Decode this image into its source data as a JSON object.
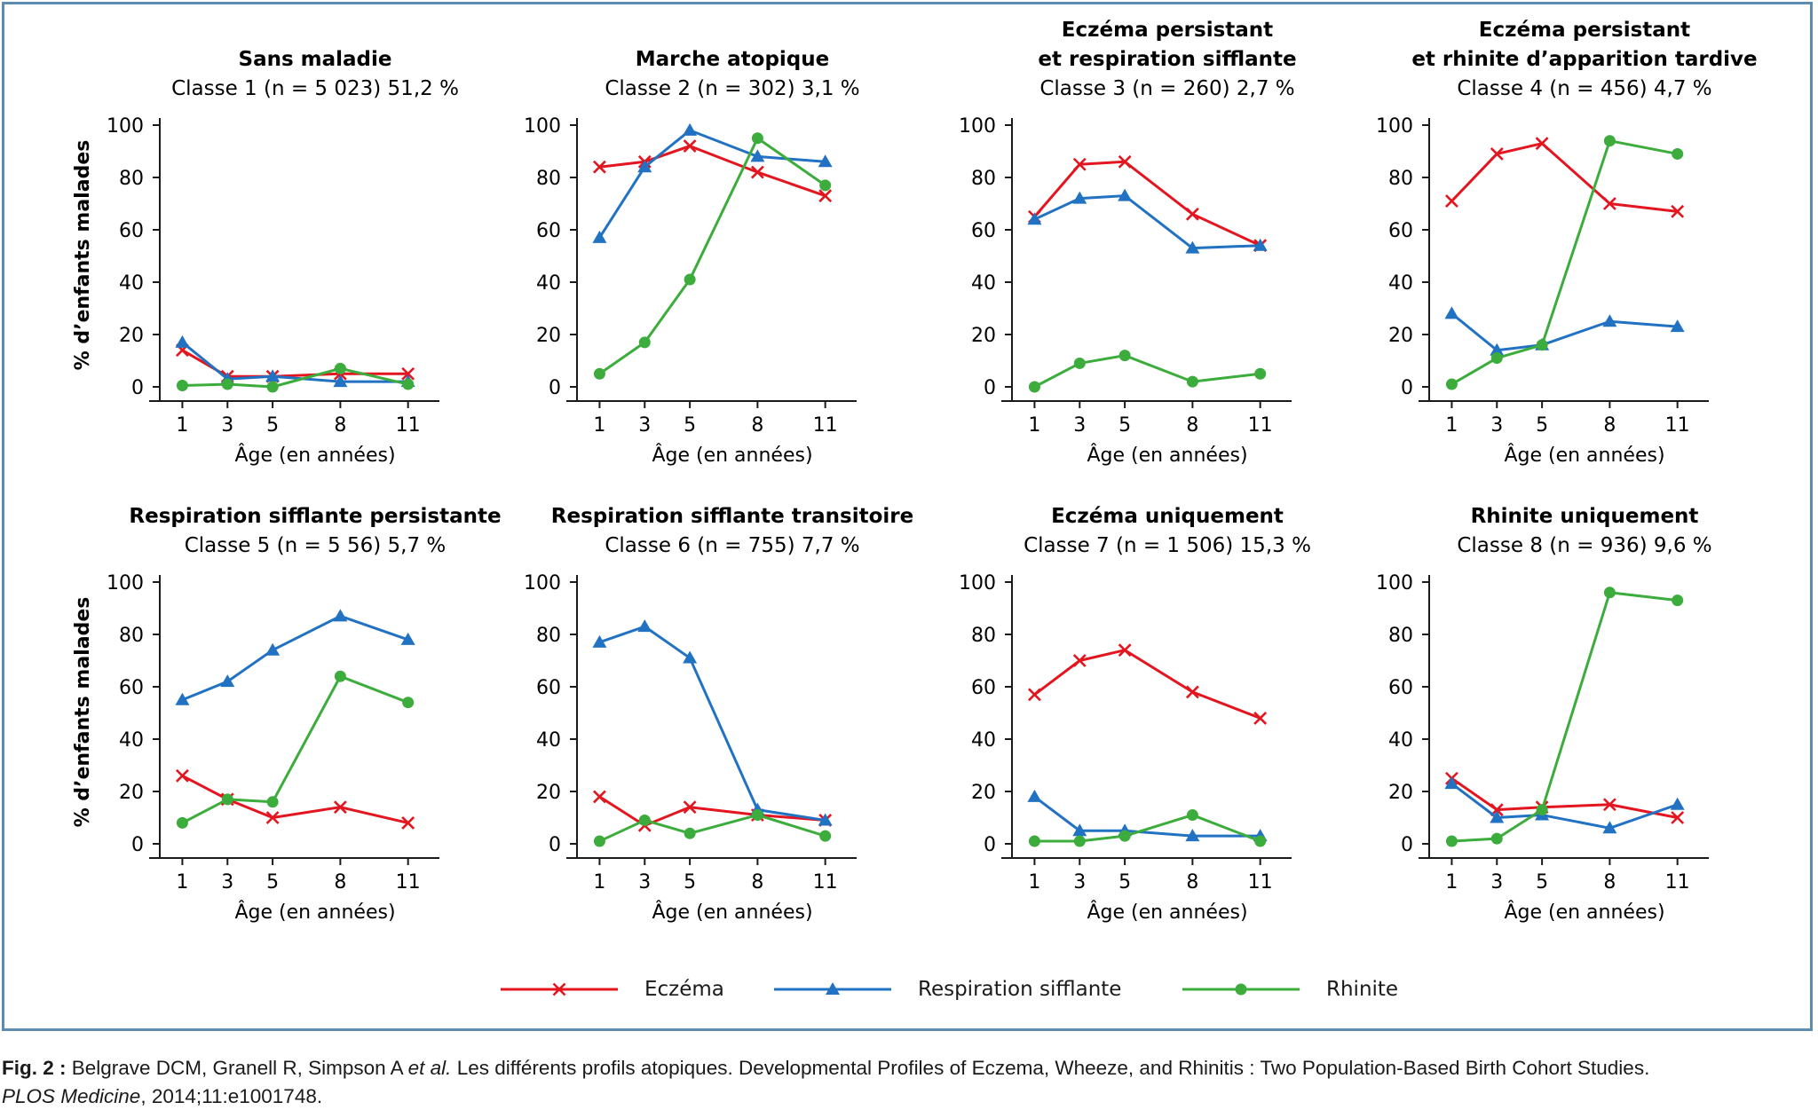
{
  "legend": [
    {
      "label": "Eczéma",
      "color": "#e3151f",
      "marker": "x"
    },
    {
      "label": "Respiration sifflante",
      "color": "#2272c3",
      "marker": "triangle"
    },
    {
      "label": "Rhinite",
      "color": "#3cac3c",
      "marker": "circle"
    }
  ],
  "caption": {
    "fig_label": "Fig. 2 :",
    "authors": " Belgrave DCM, Granell R, Simpson A ",
    "etal": "et al.",
    "text": " Les différents profils atopiques. Developmental Profiles of Eczema, Wheeze, and Rhinitis : Two Population-Based Birth Cohort Studies.",
    "journal": "PLOS Medicine",
    "ref": ", 2014;11:e1001748."
  },
  "chart_data": [
    {
      "type": "line",
      "title": [
        "Sans maladie"
      ],
      "subtitle": "Classe 1 (n = 5 023) 51,2 %",
      "x": [
        1,
        3,
        5,
        8,
        11
      ],
      "xlabel": "Âge (en années)",
      "ylabel": "% d’enfants malades",
      "ylim": [
        0,
        100
      ],
      "xticks": [
        "1",
        "3",
        "5",
        "8",
        "11"
      ],
      "yticks": [
        "0",
        "20",
        "40",
        "60",
        "80",
        "100"
      ],
      "series": [
        {
          "name": "Eczéma",
          "values": [
            14,
            4,
            4,
            5,
            5
          ]
        },
        {
          "name": "Respiration sifflante",
          "values": [
            17,
            3,
            4,
            2,
            2
          ]
        },
        {
          "name": "Rhinite",
          "values": [
            0.5,
            1,
            0,
            7,
            1
          ]
        }
      ]
    },
    {
      "type": "line",
      "title": [
        "Marche atopique"
      ],
      "subtitle": "Classe 2 (n = 302) 3,1 %",
      "x": [
        1,
        3,
        5,
        8,
        11
      ],
      "xlabel": "Âge (en années)",
      "ylabel": "",
      "ylim": [
        0,
        100
      ],
      "xticks": [
        "1",
        "3",
        "5",
        "8",
        "11"
      ],
      "yticks": [
        "0",
        "20",
        "40",
        "60",
        "80",
        "100"
      ],
      "series": [
        {
          "name": "Eczéma",
          "values": [
            84,
            86,
            92,
            82,
            73
          ]
        },
        {
          "name": "Respiration sifflante",
          "values": [
            57,
            84,
            98,
            88,
            86
          ]
        },
        {
          "name": "Rhinite",
          "values": [
            5,
            17,
            41,
            95,
            77
          ]
        }
      ]
    },
    {
      "type": "line",
      "title": [
        "Eczéma persistant",
        "et respiration sifflante"
      ],
      "subtitle": "Classe 3 (n = 260) 2,7 %",
      "x": [
        1,
        3,
        5,
        8,
        11
      ],
      "xlabel": "Âge (en années)",
      "ylabel": "",
      "ylim": [
        0,
        100
      ],
      "xticks": [
        "1",
        "3",
        "5",
        "8",
        "11"
      ],
      "yticks": [
        "0",
        "20",
        "40",
        "60",
        "80",
        "100"
      ],
      "series": [
        {
          "name": "Eczéma",
          "values": [
            65,
            85,
            86,
            66,
            54
          ]
        },
        {
          "name": "Respiration sifflante",
          "values": [
            64,
            72,
            73,
            53,
            54
          ]
        },
        {
          "name": "Rhinite",
          "values": [
            0,
            9,
            12,
            2,
            5
          ]
        }
      ]
    },
    {
      "type": "line",
      "title": [
        "Eczéma persistant",
        "et rhinite d’apparition tardive"
      ],
      "subtitle": "Classe 4 (n = 456) 4,7 %",
      "x": [
        1,
        3,
        5,
        8,
        11
      ],
      "xlabel": "Âge (en années)",
      "ylabel": "",
      "ylim": [
        0,
        100
      ],
      "xticks": [
        "1",
        "3",
        "5",
        "8",
        "11"
      ],
      "yticks": [
        "0",
        "20",
        "40",
        "60",
        "80",
        "100"
      ],
      "series": [
        {
          "name": "Eczéma",
          "values": [
            71,
            89,
            93,
            70,
            67
          ]
        },
        {
          "name": "Respiration sifflante",
          "values": [
            28,
            14,
            16,
            25,
            23
          ]
        },
        {
          "name": "Rhinite",
          "values": [
            1,
            11,
            16,
            94,
            89
          ]
        }
      ]
    },
    {
      "type": "line",
      "title": [
        "Respiration sifflante persistante"
      ],
      "subtitle": "Classe 5 (n = 5 56) 5,7 %",
      "x": [
        1,
        3,
        5,
        8,
        11
      ],
      "xlabel": "Âge (en années)",
      "ylabel": "% d’enfants malades",
      "ylim": [
        0,
        100
      ],
      "xticks": [
        "1",
        "3",
        "5",
        "8",
        "11"
      ],
      "yticks": [
        "0",
        "20",
        "40",
        "60",
        "80",
        "100"
      ],
      "series": [
        {
          "name": "Eczéma",
          "values": [
            26,
            17,
            10,
            14,
            8
          ]
        },
        {
          "name": "Respiration sifflante",
          "values": [
            55,
            62,
            74,
            87,
            78
          ]
        },
        {
          "name": "Rhinite",
          "values": [
            8,
            17,
            16,
            64,
            54
          ]
        }
      ]
    },
    {
      "type": "line",
      "title": [
        "Respiration sifflante transitoire"
      ],
      "subtitle": "Classe 6 (n = 755) 7,7 %",
      "x": [
        1,
        3,
        5,
        8,
        11
      ],
      "xlabel": "Âge (en années)",
      "ylabel": "",
      "ylim": [
        0,
        100
      ],
      "xticks": [
        "1",
        "3",
        "5",
        "8",
        "11"
      ],
      "yticks": [
        "0",
        "20",
        "40",
        "60",
        "80",
        "100"
      ],
      "series": [
        {
          "name": "Eczéma",
          "values": [
            18,
            7,
            14,
            11,
            9
          ]
        },
        {
          "name": "Respiration sifflante",
          "values": [
            77,
            83,
            71,
            13,
            9
          ]
        },
        {
          "name": "Rhinite",
          "values": [
            1,
            9,
            4,
            11,
            3
          ]
        }
      ]
    },
    {
      "type": "line",
      "title": [
        "Eczéma uniquement"
      ],
      "subtitle": "Classe 7 (n = 1 506) 15,3 %",
      "x": [
        1,
        3,
        5,
        8,
        11
      ],
      "xlabel": "Âge (en années)",
      "ylabel": "",
      "ylim": [
        0,
        100
      ],
      "xticks": [
        "1",
        "3",
        "5",
        "8",
        "11"
      ],
      "yticks": [
        "0",
        "20",
        "40",
        "60",
        "80",
        "100"
      ],
      "series": [
        {
          "name": "Eczéma",
          "values": [
            57,
            70,
            74,
            58,
            48
          ]
        },
        {
          "name": "Respiration sifflante",
          "values": [
            18,
            5,
            5,
            3,
            3
          ]
        },
        {
          "name": "Rhinite",
          "values": [
            1,
            1,
            3,
            11,
            1
          ]
        }
      ]
    },
    {
      "type": "line",
      "title": [
        "Rhinite uniquement"
      ],
      "subtitle": "Classe 8 (n = 936) 9,6 %",
      "x": [
        1,
        3,
        5,
        8,
        11
      ],
      "xlabel": "Âge (en années)",
      "ylabel": "",
      "ylim": [
        0,
        100
      ],
      "xticks": [
        "1",
        "3",
        "5",
        "8",
        "11"
      ],
      "yticks": [
        "0",
        "20",
        "40",
        "60",
        "80",
        "100"
      ],
      "series": [
        {
          "name": "Eczéma",
          "values": [
            25,
            13,
            14,
            15,
            10
          ]
        },
        {
          "name": "Respiration sifflante",
          "values": [
            23,
            10,
            11,
            6,
            15
          ]
        },
        {
          "name": "Rhinite",
          "values": [
            1,
            2,
            13,
            96,
            93
          ]
        }
      ]
    }
  ]
}
